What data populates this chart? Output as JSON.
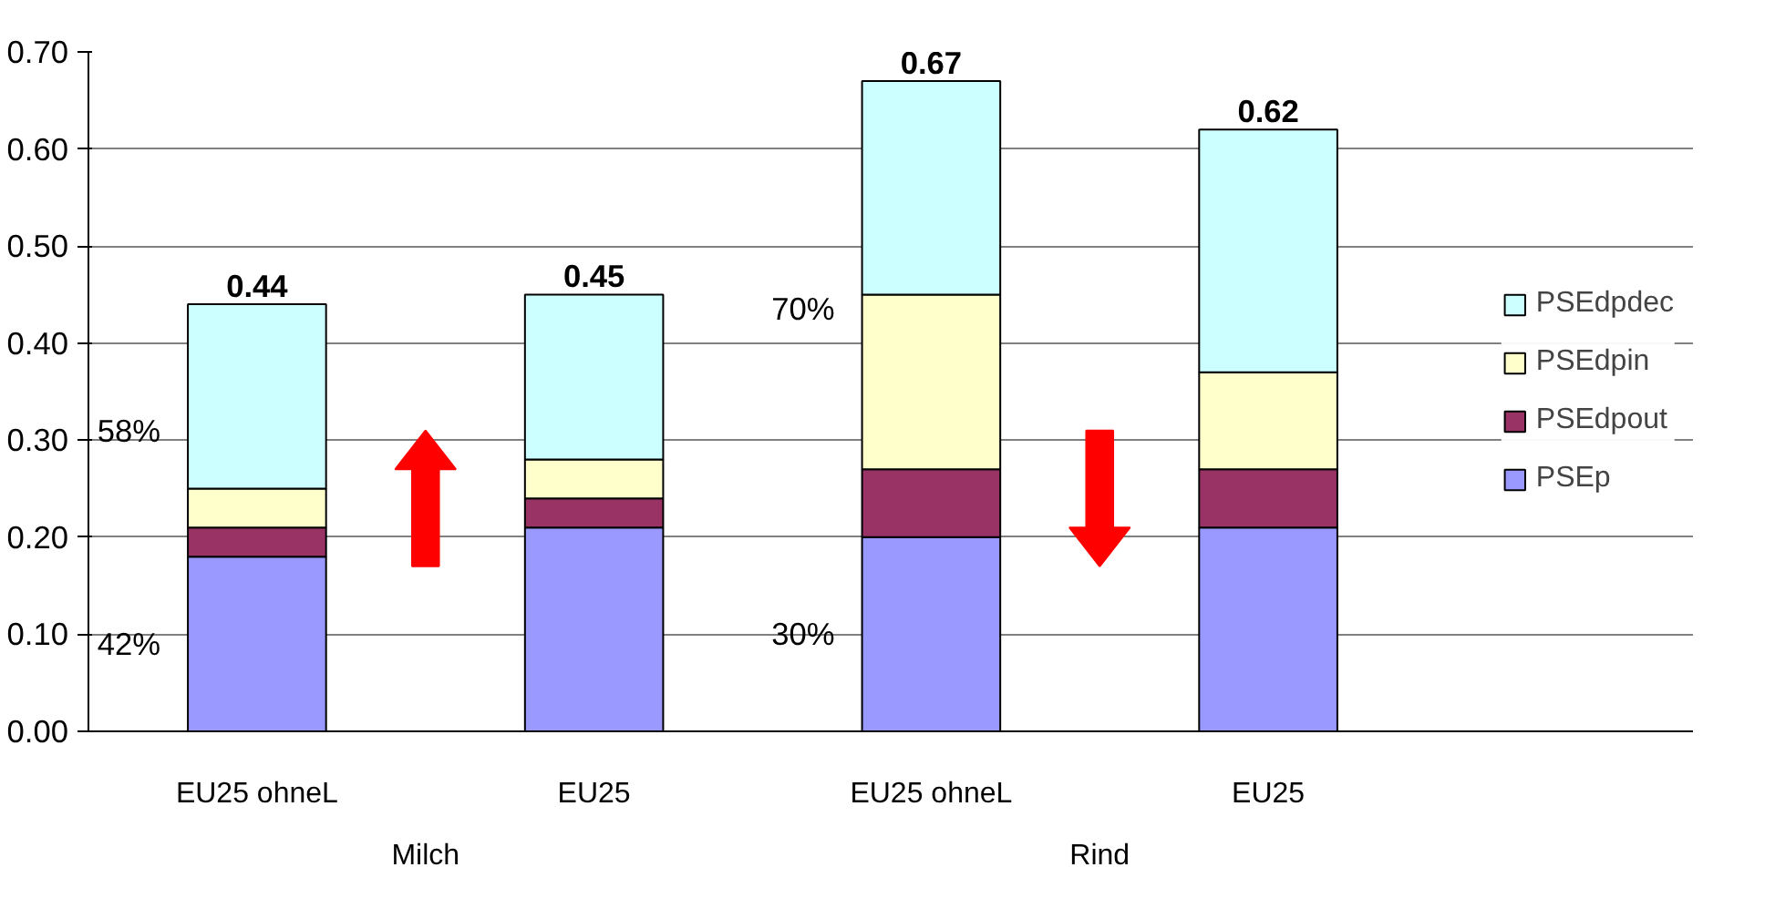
{
  "chart_data": {
    "type": "bar",
    "stacked": true,
    "categories": [
      "EU25 ohneL",
      "EU25",
      "EU25 ohneL",
      "EU25"
    ],
    "series": [
      {
        "name": "PSEp",
        "color": "#9999ff",
        "values": [
          0.18,
          0.21,
          0.2,
          0.21
        ]
      },
      {
        "name": "PSEdpout",
        "color": "#993366",
        "values": [
          0.03,
          0.03,
          0.07,
          0.06
        ]
      },
      {
        "name": "PSEdpin",
        "color": "#ffffcc",
        "values": [
          0.04,
          0.04,
          0.18,
          0.1
        ]
      },
      {
        "name": "PSEdpdec",
        "color": "#ccffff",
        "values": [
          0.19,
          0.17,
          0.22,
          0.25
        ]
      }
    ],
    "totals": [
      "0.44",
      "0.45",
      "0.67",
      "0.62"
    ],
    "annotations": [
      "58%",
      "42%",
      "70%",
      "30%",
      "Milch",
      "Rind"
    ],
    "ylim": [
      0,
      0.7
    ],
    "yticks": [
      {
        "value": 0,
        "label": "0.00"
      },
      {
        "value": 0.1,
        "label": "0.10"
      },
      {
        "value": 0.2,
        "label": "0.20"
      },
      {
        "value": 0.3,
        "label": "0.30"
      },
      {
        "value": 0.4,
        "label": "0.40"
      },
      {
        "value": 0.5,
        "label": "0.50"
      },
      {
        "value": 0.6,
        "label": "0.60"
      },
      {
        "value": 0.7,
        "label": "0.70"
      }
    ],
    "grid": "y",
    "legend": "right"
  }
}
